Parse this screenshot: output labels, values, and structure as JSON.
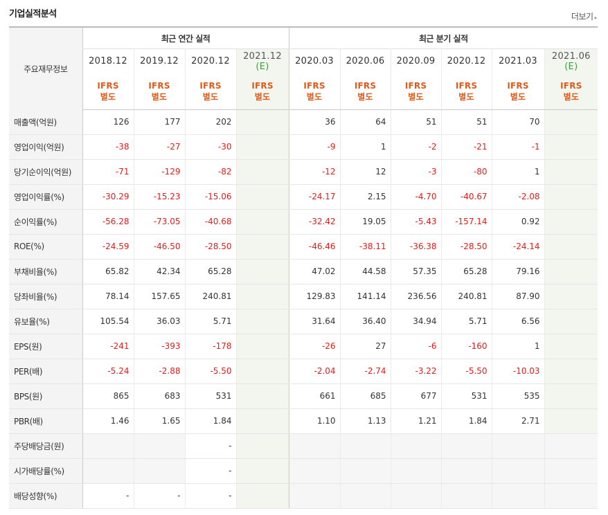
{
  "header": {
    "title": "기업실적분석",
    "more_label": "더보기",
    "more_arrow": "▸"
  },
  "table": {
    "label_header": "주요재무정보",
    "annual_group": "최근 연간 실적",
    "quarter_group": "최근 분기 실적",
    "ifrs_top": "IFRS",
    "ifrs_bottom": "별도",
    "estimate_mark": "(E)",
    "annual_periods": [
      "2018.12",
      "2019.12",
      "2020.12",
      "2021.12"
    ],
    "quarter_periods": [
      "2020.03",
      "2020.06",
      "2020.09",
      "2020.12",
      "2021.03",
      "2021.06"
    ],
    "rows": [
      {
        "label": "매출액(억원)",
        "annual": [
          "126",
          "177",
          "202",
          ""
        ],
        "quarter": [
          "36",
          "64",
          "51",
          "51",
          "70",
          ""
        ]
      },
      {
        "label": "영업이익(억원)",
        "annual": [
          "-38",
          "-27",
          "-30",
          ""
        ],
        "quarter": [
          "-9",
          "1",
          "-2",
          "-21",
          "-1",
          ""
        ]
      },
      {
        "label": "당기순이익(억원)",
        "annual": [
          "-71",
          "-129",
          "-82",
          ""
        ],
        "quarter": [
          "-12",
          "12",
          "-3",
          "-80",
          "1",
          ""
        ]
      },
      {
        "label": "영업이익률(%)",
        "annual": [
          "-30.29",
          "-15.23",
          "-15.06",
          ""
        ],
        "quarter": [
          "-24.17",
          "2.15",
          "-4.70",
          "-40.67",
          "-2.08",
          ""
        ]
      },
      {
        "label": "순이익률(%)",
        "annual": [
          "-56.28",
          "-73.05",
          "-40.68",
          ""
        ],
        "quarter": [
          "-32.42",
          "19.05",
          "-5.43",
          "-157.14",
          "0.92",
          ""
        ]
      },
      {
        "label": "ROE(%)",
        "annual": [
          "-24.59",
          "-46.50",
          "-28.50",
          ""
        ],
        "quarter": [
          "-46.46",
          "-38.11",
          "-36.38",
          "-28.50",
          "-24.14",
          ""
        ]
      },
      {
        "label": "부채비율(%)",
        "annual": [
          "65.82",
          "42.34",
          "65.28",
          ""
        ],
        "quarter": [
          "47.02",
          "44.58",
          "57.35",
          "65.28",
          "79.16",
          ""
        ]
      },
      {
        "label": "당좌비율(%)",
        "annual": [
          "78.14",
          "157.65",
          "240.81",
          ""
        ],
        "quarter": [
          "129.83",
          "141.14",
          "236.56",
          "240.81",
          "87.90",
          ""
        ]
      },
      {
        "label": "유보율(%)",
        "annual": [
          "105.54",
          "36.03",
          "5.71",
          ""
        ],
        "quarter": [
          "31.64",
          "36.40",
          "34.94",
          "5.71",
          "6.56",
          ""
        ]
      },
      {
        "label": "EPS(원)",
        "annual": [
          "-241",
          "-393",
          "-178",
          ""
        ],
        "quarter": [
          "-26",
          "27",
          "-6",
          "-160",
          "1",
          ""
        ]
      },
      {
        "label": "PER(배)",
        "annual": [
          "-5.24",
          "-2.88",
          "-5.50",
          ""
        ],
        "quarter": [
          "-2.04",
          "-2.74",
          "-3.22",
          "-5.50",
          "-10.03",
          ""
        ]
      },
      {
        "label": "BPS(원)",
        "annual": [
          "865",
          "683",
          "531",
          ""
        ],
        "quarter": [
          "661",
          "685",
          "677",
          "531",
          "535",
          ""
        ]
      },
      {
        "label": "PBR(배)",
        "annual": [
          "1.46",
          "1.65",
          "1.84",
          ""
        ],
        "quarter": [
          "1.10",
          "1.13",
          "1.21",
          "1.84",
          "2.71",
          ""
        ]
      },
      {
        "label": "주당배당금(원)",
        "annual": [
          "",
          "",
          "-",
          ""
        ],
        "quarter": [
          "",
          "",
          "",
          "",
          "",
          ""
        ]
      },
      {
        "label": "시가배당률(%)",
        "annual": [
          "",
          "",
          "-",
          ""
        ],
        "quarter": [
          "",
          "",
          "",
          "",
          "",
          ""
        ]
      },
      {
        "label": "배당성향(%)",
        "annual": [
          "-",
          "-",
          "-",
          ""
        ],
        "quarter": [
          "",
          "",
          "",
          "",
          "",
          ""
        ]
      }
    ]
  },
  "colors": {
    "negative": "#e21b1b",
    "ifrs": "#e05a1a",
    "estimate_mark": "#3aa13a",
    "estimate_bg": "#f2f6ef"
  }
}
